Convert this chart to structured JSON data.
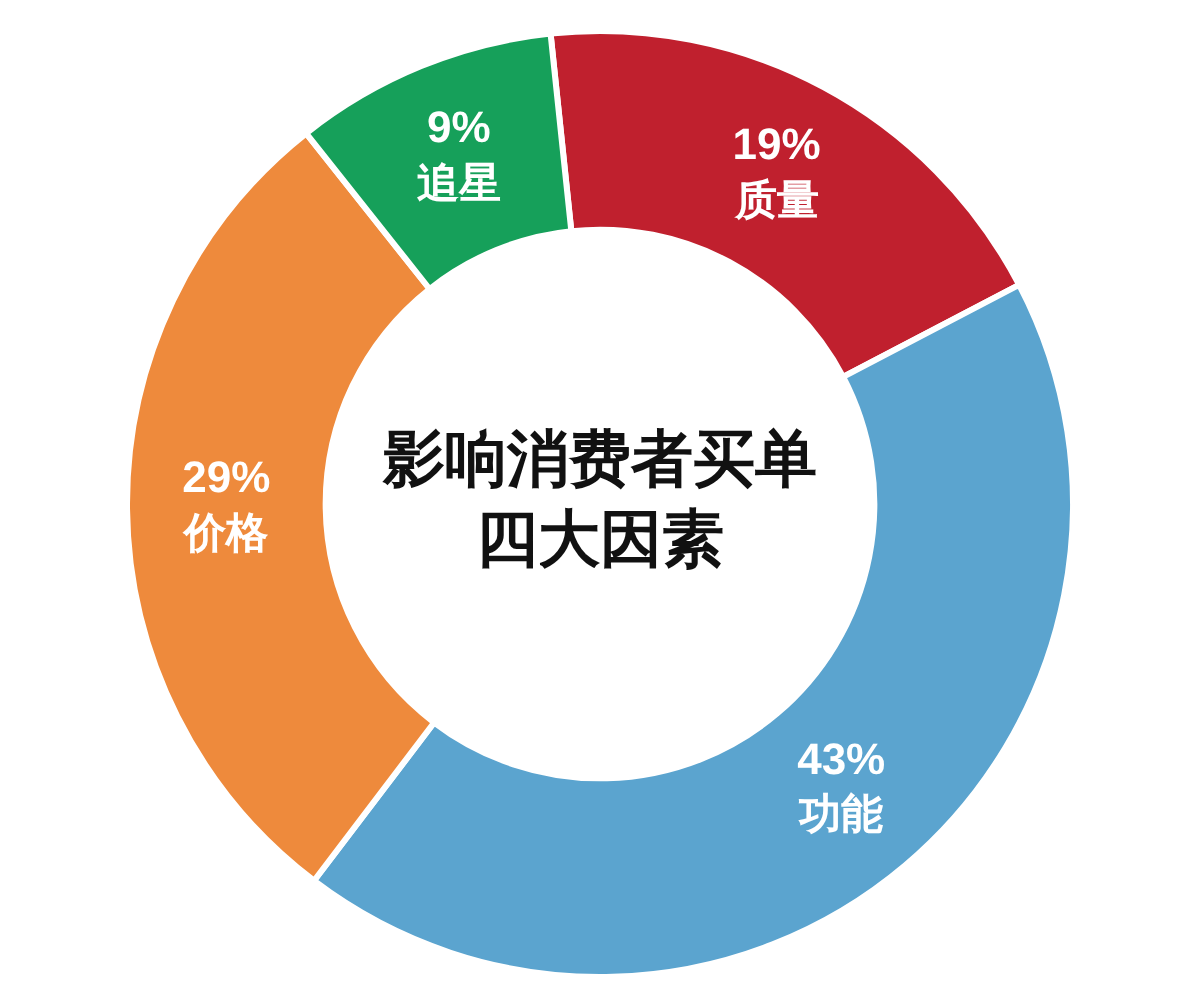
{
  "chart_data": {
    "type": "donut",
    "title": "影响消费者买单四大因素",
    "categories": [
      "质量",
      "功能",
      "价格",
      "追星"
    ],
    "values": [
      19,
      43,
      29,
      9
    ],
    "colors": [
      "#c0202e",
      "#5ba4cf",
      "#ee8a3c",
      "#16a05a"
    ],
    "value_labels": [
      "19%",
      "43%",
      "29%",
      "9%"
    ],
    "legend": false
  }
}
